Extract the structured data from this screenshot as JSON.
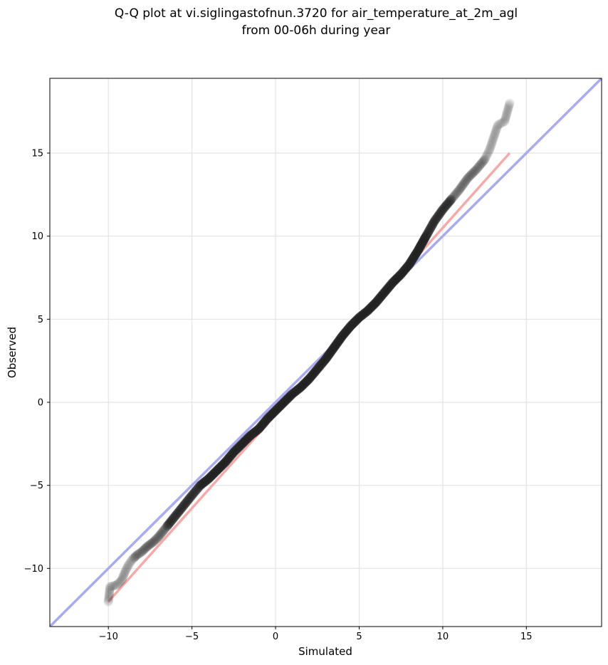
{
  "chart_data": {
    "type": "scatter",
    "title_lines": [
      "Q-Q plot at vi.siglingastofnun.3720 for air_temperature_at_2m_agl",
      "from 00-06h during year"
    ],
    "xlabel": "Simulated",
    "ylabel": "Observed",
    "xlim": [
      -13.5,
      19.5
    ],
    "ylim": [
      -13.5,
      19.5
    ],
    "xticks": [
      -10,
      -5,
      0,
      5,
      10,
      15
    ],
    "yticks": [
      -10,
      -5,
      0,
      5,
      10,
      15
    ],
    "xtick_labels": [
      "−10",
      "−5",
      "0",
      "5",
      "10",
      "15"
    ],
    "ytick_labels": [
      "−10",
      "−5",
      "0",
      "5",
      "10",
      "15"
    ],
    "grid": true,
    "reference_lines": [
      {
        "kind": "one-to-one",
        "color": "#aaaaf0",
        "points": [
          [
            -13.5,
            -13.5
          ],
          [
            19.5,
            19.5
          ]
        ]
      },
      {
        "kind": "fit",
        "color": "#f5aaaa",
        "points": [
          [
            -10,
            -12
          ],
          [
            14,
            15
          ]
        ]
      }
    ],
    "quantile_points": [
      [
        -10.0,
        -12.0
      ],
      [
        -9.9,
        -11.1
      ],
      [
        -9.5,
        -11.0
      ],
      [
        -9.2,
        -10.7
      ],
      [
        -9.0,
        -10.2
      ],
      [
        -8.8,
        -9.8
      ],
      [
        -8.6,
        -9.5
      ],
      [
        -8.3,
        -9.2
      ],
      [
        -8.0,
        -9.0
      ],
      [
        -7.7,
        -8.7
      ],
      [
        -7.3,
        -8.4
      ],
      [
        -7.0,
        -8.1
      ],
      [
        -6.6,
        -7.6
      ],
      [
        -6.2,
        -7.1
      ],
      [
        -5.8,
        -6.6
      ],
      [
        -5.4,
        -6.1
      ],
      [
        -5.0,
        -5.6
      ],
      [
        -4.5,
        -5.0
      ],
      [
        -4.0,
        -4.6
      ],
      [
        -3.5,
        -4.1
      ],
      [
        -3.0,
        -3.6
      ],
      [
        -2.5,
        -3.0
      ],
      [
        -2.0,
        -2.5
      ],
      [
        -1.5,
        -2.0
      ],
      [
        -1.0,
        -1.6
      ],
      [
        -0.5,
        -1.0
      ],
      [
        0.0,
        -0.5
      ],
      [
        0.5,
        0.0
      ],
      [
        1.0,
        0.5
      ],
      [
        1.5,
        0.9
      ],
      [
        2.0,
        1.4
      ],
      [
        2.5,
        2.0
      ],
      [
        3.0,
        2.6
      ],
      [
        3.5,
        3.3
      ],
      [
        4.0,
        4.0
      ],
      [
        4.5,
        4.6
      ],
      [
        5.0,
        5.1
      ],
      [
        5.5,
        5.5
      ],
      [
        6.0,
        6.0
      ],
      [
        6.5,
        6.6
      ],
      [
        7.0,
        7.2
      ],
      [
        7.5,
        7.7
      ],
      [
        8.0,
        8.3
      ],
      [
        8.5,
        9.1
      ],
      [
        9.0,
        10.0
      ],
      [
        9.5,
        10.9
      ],
      [
        10.0,
        11.6
      ],
      [
        10.5,
        12.2
      ],
      [
        11.0,
        12.8
      ],
      [
        11.5,
        13.5
      ],
      [
        12.0,
        14.0
      ],
      [
        12.5,
        14.6
      ],
      [
        12.8,
        15.2
      ],
      [
        13.0,
        15.8
      ],
      [
        13.3,
        16.7
      ],
      [
        13.7,
        16.9
      ],
      [
        14.0,
        18.0
      ]
    ]
  }
}
